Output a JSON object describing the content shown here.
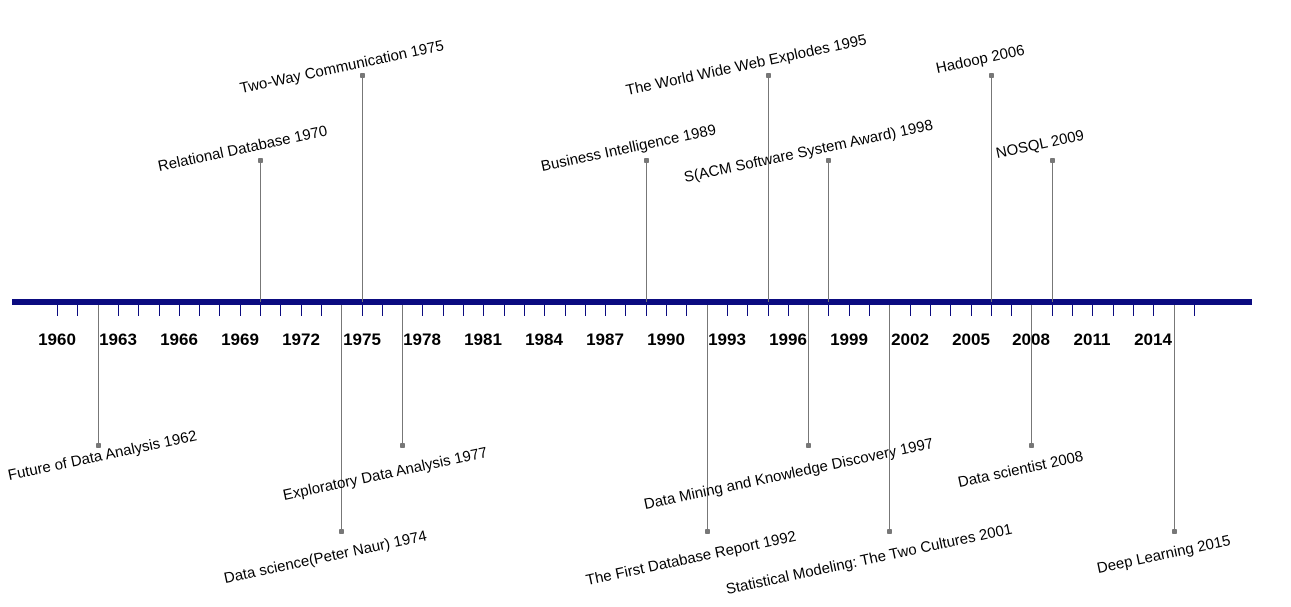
{
  "timeline": {
    "years": [
      "1960",
      "1963",
      "1966",
      "1969",
      "1972",
      "1975",
      "1978",
      "1981",
      "1984",
      "1987",
      "1990",
      "1993",
      "1996",
      "1999",
      "2002",
      "2005",
      "2008",
      "2011",
      "2014"
    ],
    "events_above": [
      {
        "label": "Relational Database 1970"
      },
      {
        "label": "Two-Way Communication 1975"
      },
      {
        "label": "Business Intelligence 1989"
      },
      {
        "label": "The World Wide Web Explodes 1995"
      },
      {
        "label": "S(ACM Software System Award) 1998"
      },
      {
        "label": "Hadoop 2006"
      },
      {
        "label": "NOSQL 2009"
      }
    ],
    "events_below": [
      {
        "label": "Future of Data Analysis 1962"
      },
      {
        "label": "Data science(Peter Naur) 1974"
      },
      {
        "label": "Exploratory Data Analysis 1977"
      },
      {
        "label": "The First Database Report 1992"
      },
      {
        "label": "Data Mining and Knowledge Discovery 1997"
      },
      {
        "label": "Statistical Modeling: The Two Cultures 2001"
      },
      {
        "label": "Data scientist 2008"
      },
      {
        "label": "Deep Learning 2015"
      }
    ],
    "colors": {
      "axis": "#0b0b80",
      "stem": "#777777",
      "text": "#000000"
    }
  }
}
